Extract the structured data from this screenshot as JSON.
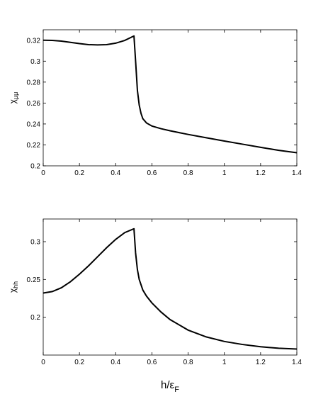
{
  "chart_data": [
    {
      "type": "line",
      "ylabel": "χ",
      "ylabel_sub": "μμ",
      "xlim": [
        0,
        1.4
      ],
      "ylim": [
        0.2,
        0.33
      ],
      "xticks": [
        0,
        0.2,
        0.4,
        0.6,
        0.8,
        1,
        1.2,
        1.4
      ],
      "xtick_labels": [
        "0",
        "0.2",
        "0.4",
        "0.6",
        "0.8",
        "1",
        "1.2",
        "1.4"
      ],
      "yticks": [
        0.2,
        0.22,
        0.24,
        0.26,
        0.28,
        0.3,
        0.32
      ],
      "ytick_labels": [
        "0.2",
        "0.22",
        "0.24",
        "0.26",
        "0.28",
        "0.3",
        "0.32"
      ],
      "grid": false,
      "series": [
        {
          "color": "#000000",
          "x": [
            0,
            0.05,
            0.1,
            0.15,
            0.2,
            0.25,
            0.3,
            0.35,
            0.4,
            0.45,
            0.5,
            0.501,
            0.51,
            0.52,
            0.53,
            0.54,
            0.55,
            0.57,
            0.6,
            0.65,
            0.7,
            0.8,
            0.9,
            1.0,
            1.1,
            1.2,
            1.3,
            1.4
          ],
          "y": [
            0.32,
            0.3198,
            0.3192,
            0.318,
            0.3168,
            0.3158,
            0.3155,
            0.3158,
            0.3172,
            0.3198,
            0.324,
            0.324,
            0.3,
            0.272,
            0.258,
            0.25,
            0.245,
            0.241,
            0.238,
            0.2355,
            0.2335,
            0.23,
            0.2268,
            0.2237,
            0.2207,
            0.2177,
            0.2148,
            0.2125
          ]
        }
      ]
    },
    {
      "type": "line",
      "ylabel": "χ",
      "ylabel_sub": "hh",
      "xlabel": "h/ε",
      "xlabel_sub": "F",
      "xlim": [
        0,
        1.4
      ],
      "ylim": [
        0.15,
        0.33
      ],
      "xticks": [
        0,
        0.2,
        0.4,
        0.6,
        0.8,
        1,
        1.2,
        1.4
      ],
      "xtick_labels": [
        "0",
        "0.2",
        "0.4",
        "0.6",
        "0.8",
        "1",
        "1.2",
        "1.4"
      ],
      "yticks": [
        0.2,
        0.25,
        0.3
      ],
      "ytick_labels": [
        "0.2",
        "0.25",
        "0.3"
      ],
      "grid": false,
      "series": [
        {
          "color": "#000000",
          "x": [
            0,
            0.05,
            0.1,
            0.15,
            0.2,
            0.25,
            0.3,
            0.35,
            0.4,
            0.45,
            0.5,
            0.501,
            0.51,
            0.52,
            0.53,
            0.55,
            0.57,
            0.6,
            0.65,
            0.7,
            0.8,
            0.9,
            1.0,
            1.1,
            1.2,
            1.3,
            1.4
          ],
          "y": [
            0.232,
            0.234,
            0.239,
            0.247,
            0.257,
            0.268,
            0.28,
            0.292,
            0.303,
            0.312,
            0.317,
            0.317,
            0.285,
            0.263,
            0.25,
            0.236,
            0.228,
            0.219,
            0.207,
            0.197,
            0.183,
            0.174,
            0.168,
            0.164,
            0.161,
            0.159,
            0.158
          ]
        }
      ]
    }
  ]
}
